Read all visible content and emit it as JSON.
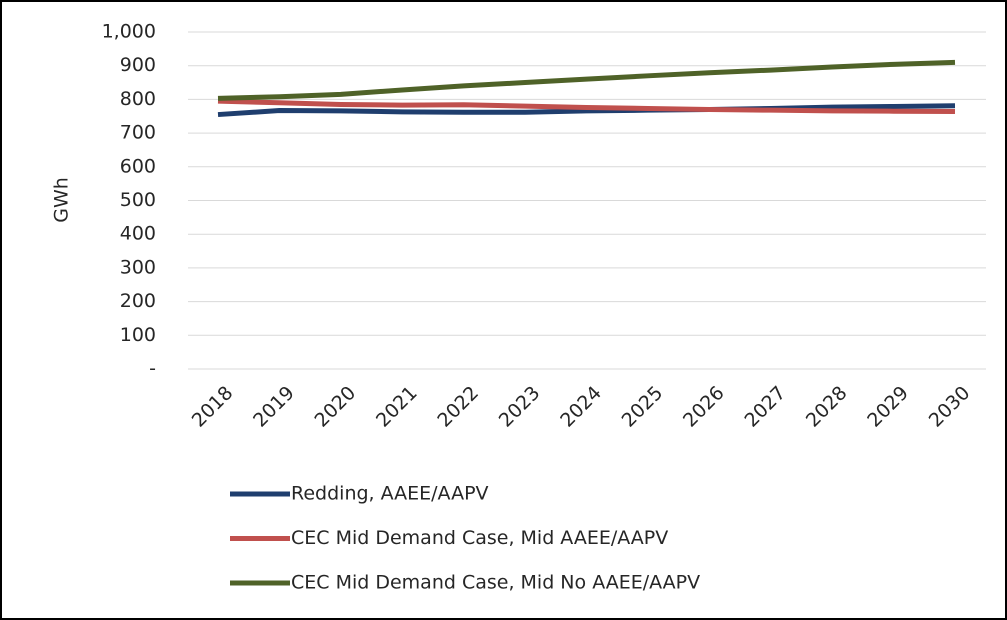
{
  "chart_data": {
    "type": "line",
    "y_label": "GWh",
    "categories": [
      "2018",
      "2019",
      "2020",
      "2021",
      "2022",
      "2023",
      "2024",
      "2025",
      "2026",
      "2027",
      "2028",
      "2029",
      "2030"
    ],
    "series": [
      {
        "name": "Redding, AAEE/AAPV",
        "color": "#1f3e6e",
        "values": [
          755,
          767,
          766,
          763,
          762,
          762,
          766,
          768,
          770,
          773,
          777,
          779,
          781
        ]
      },
      {
        "name": "CEC Mid Demand Case, Mid AAEE/AAPV",
        "color": "#c0504d",
        "values": [
          795,
          790,
          785,
          783,
          784,
          780,
          776,
          773,
          770,
          768,
          766,
          765,
          764
        ]
      },
      {
        "name": "CEC Mid Demand Case, Mid No AAEE/AAPV",
        "color": "#4f6228",
        "values": [
          803,
          808,
          815,
          828,
          840,
          850,
          860,
          870,
          879,
          887,
          896,
          904,
          910
        ]
      }
    ],
    "ylim": [
      0,
      1000
    ],
    "yticks": [
      {
        "value": 0,
        "label": "-"
      },
      100,
      200,
      300,
      400,
      500,
      600,
      700,
      800,
      900,
      {
        "value": 1000,
        "label": "1,000"
      }
    ],
    "grid": true
  }
}
